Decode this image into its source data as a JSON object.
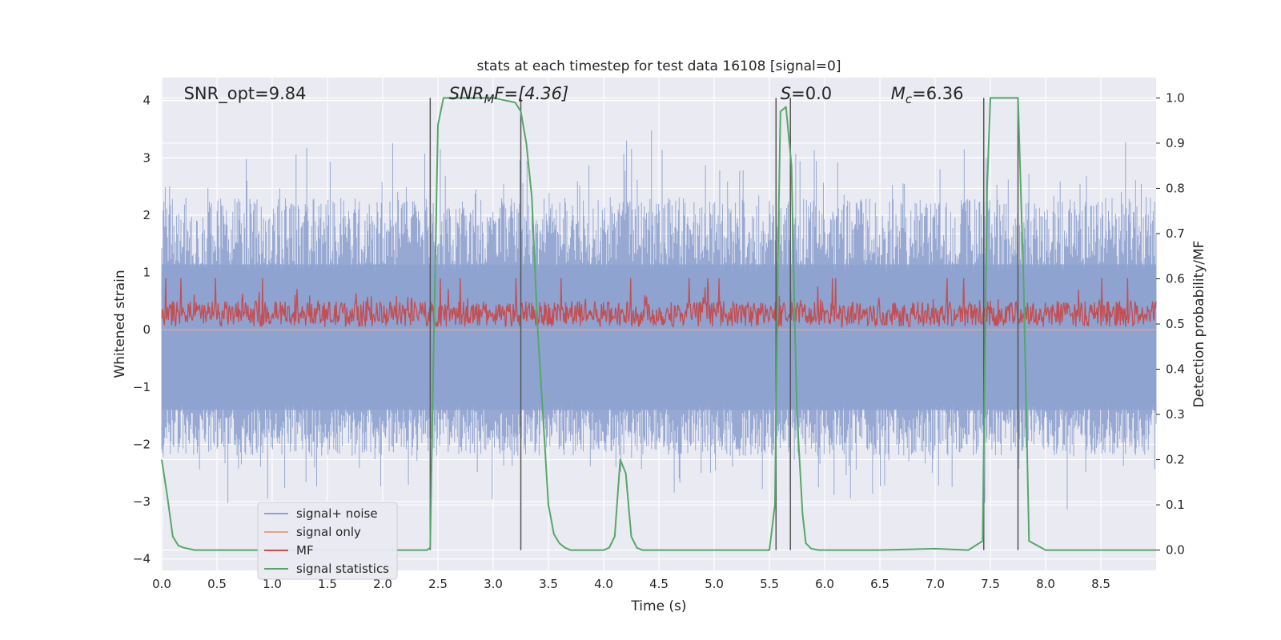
{
  "chart_data": {
    "type": "line",
    "title": "stats at each timestep for test data 16108 [signal=0]",
    "xlabel": "Time (s)",
    "ylabel": "Whitened strain",
    "ylabel_right": "Detection probability/MF",
    "xlim": [
      0.0,
      9.0
    ],
    "ylim": [
      -4.2,
      4.4
    ],
    "ylim_right": [
      -0.045,
      1.045
    ],
    "x_ticks": [
      "0.0",
      "0.5",
      "1.0",
      "1.5",
      "2.0",
      "2.5",
      "3.0",
      "3.5",
      "4.0",
      "4.5",
      "5.0",
      "5.5",
      "6.0",
      "6.5",
      "7.0",
      "7.5",
      "8.0",
      "8.5"
    ],
    "x_tick_values": [
      0.0,
      0.5,
      1.0,
      1.5,
      2.0,
      2.5,
      3.0,
      3.5,
      4.0,
      4.5,
      5.0,
      5.5,
      6.0,
      6.5,
      7.0,
      7.5,
      8.0,
      8.5
    ],
    "y_ticks": [
      "4",
      "3",
      "2",
      "1",
      "0",
      "−1",
      "−2",
      "−3",
      "−4"
    ],
    "y_tick_values": [
      4,
      3,
      2,
      1,
      0,
      -1,
      -2,
      -3,
      -4
    ],
    "y_ticks_right": [
      "1.0",
      "0.9",
      "0.8",
      "0.7",
      "0.6",
      "0.5",
      "0.4",
      "0.3",
      "0.2",
      "0.1",
      "0.0"
    ],
    "y_tick_values_right": [
      1.0,
      0.9,
      0.8,
      0.7,
      0.6,
      0.5,
      0.4,
      0.3,
      0.2,
      0.1,
      0.0
    ],
    "grid": true,
    "legend_placement": "lower-left",
    "annotations": [
      {
        "text": "SNR_opt=9.84",
        "italic": false,
        "x": 0.2
      },
      {
        "text": "SNR",
        "sub": "M",
        "tail": "F=[4.36]",
        "italic": true,
        "x": 2.6
      },
      {
        "text": "S",
        "tail": "=0.0",
        "italic": true,
        "x": 5.6
      },
      {
        "text": "M",
        "sub": "c",
        "tail": "=6.36",
        "italic": true,
        "x": 6.6
      }
    ],
    "series": [
      {
        "name": "signal+ noise",
        "color": "#8ea2cf",
        "axis": "left",
        "style": "noise",
        "band_envelope": {
          "upper": 1.7,
          "lower": -1.4
        },
        "peak_range": [
          -3.6,
          4.0
        ]
      },
      {
        "name": "signal only",
        "color": "#e8a387",
        "axis": "left",
        "x": [
          0.0,
          9.0
        ],
        "values": [
          0.0,
          0.0
        ]
      },
      {
        "name": "MF",
        "color": "#c44e52",
        "axis": "left",
        "style": "noise",
        "range": [
          0.0,
          0.9
        ]
      },
      {
        "name": "signal statistics",
        "color": "#55a868",
        "axis": "right",
        "x": [
          0.0,
          0.05,
          0.1,
          0.15,
          0.2,
          0.3,
          0.5,
          1.0,
          1.5,
          2.0,
          2.4,
          2.43,
          2.45,
          2.5,
          2.55,
          2.6,
          2.7,
          3.0,
          3.2,
          3.25,
          3.3,
          3.35,
          3.4,
          3.45,
          3.5,
          3.55,
          3.6,
          3.65,
          3.7,
          3.75,
          3.8,
          3.9,
          4.0,
          4.05,
          4.1,
          4.15,
          4.2,
          4.25,
          4.3,
          4.35,
          4.4,
          4.5,
          5.0,
          5.5,
          5.55,
          5.58,
          5.6,
          5.65,
          5.7,
          5.73,
          5.75,
          5.8,
          5.83,
          5.88,
          5.95,
          6.0,
          6.5,
          7.0,
          7.3,
          7.43,
          7.47,
          7.5,
          7.6,
          7.75,
          7.8,
          7.85,
          8.0,
          8.5,
          9.0
        ],
        "values": [
          0.2,
          0.12,
          0.03,
          0.01,
          0.005,
          0.0,
          0.0,
          0.0,
          0.0,
          0.0,
          0.0,
          0.005,
          0.3,
          0.94,
          1.0,
          1.0,
          1.0,
          1.0,
          0.99,
          0.97,
          0.9,
          0.78,
          0.5,
          0.3,
          0.1,
          0.035,
          0.015,
          0.005,
          0.0,
          0.0,
          0.0,
          0.0,
          0.0,
          0.005,
          0.03,
          0.2,
          0.17,
          0.03,
          0.005,
          0.0,
          0.0,
          0.0,
          0.0,
          0.0,
          0.1,
          0.68,
          0.97,
          0.98,
          0.85,
          0.5,
          0.3,
          0.08,
          0.015,
          0.003,
          0.0,
          0.0,
          0.0,
          0.003,
          0.0,
          0.02,
          0.8,
          1.0,
          1.0,
          1.0,
          0.6,
          0.02,
          0.0,
          0.0,
          0.0
        ]
      }
    ],
    "vertical_lines": [
      2.43,
      3.25,
      5.56,
      5.69,
      7.44,
      7.75
    ],
    "vertical_line_color": "#555555"
  }
}
